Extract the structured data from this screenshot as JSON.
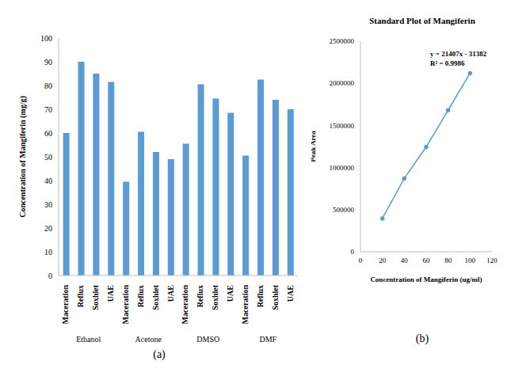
{
  "chart_data": [
    {
      "type": "bar",
      "y_label": "Concentration of Mangiferin (mg/g)",
      "categories": [
        "Maceration",
        "Reflux",
        "Soxhlet",
        "UAE",
        "Maceration",
        "Reflux",
        "Soxhlet",
        "UAE",
        "Maceration",
        "Reflux",
        "Soxhlet",
        "UAE",
        "Maceration",
        "Reflux",
        "Soxhlet",
        "UAE"
      ],
      "groups": [
        "Ethanol",
        "Acetone",
        "DMSO",
        "DMF"
      ],
      "values": [
        60,
        90,
        85,
        81.5,
        39.5,
        60.5,
        52,
        49,
        55.5,
        80.5,
        74.5,
        68.5,
        50.5,
        82.5,
        74,
        70
      ],
      "color": "#5b9bd5",
      "ylim": [
        0,
        100
      ],
      "yticks": [
        0,
        10,
        20,
        30,
        40,
        50,
        60,
        70,
        80,
        90,
        100
      ],
      "grid": false,
      "panel_label": "(a)"
    },
    {
      "type": "line",
      "title": "Standard Plot of Mangiferin",
      "x_label": "Concentration of Mangiferin (ug/ml)",
      "y_label": "Peak Area",
      "x": [
        20,
        40,
        60,
        80,
        100
      ],
      "values": [
        395000,
        870000,
        1245000,
        1680000,
        2120000
      ],
      "color": "#5b9bd5",
      "marker": "circle",
      "xlim": [
        0,
        120
      ],
      "xticks": [
        0,
        20,
        40,
        60,
        80,
        100,
        120
      ],
      "ylim": [
        0,
        2500000
      ],
      "yticks": [
        0,
        500000,
        1000000,
        1500000,
        2000000,
        2500000
      ],
      "grid": false,
      "annotations": [
        "y = 21407x - 31382",
        "R² = 0.9986"
      ],
      "panel_label": "(b)"
    }
  ]
}
